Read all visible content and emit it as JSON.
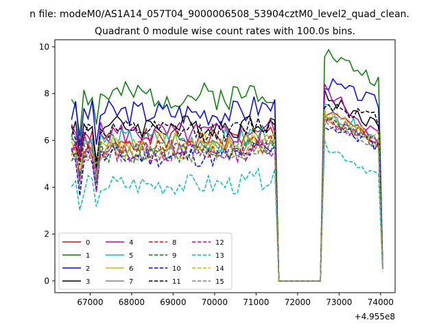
{
  "figure": {
    "suptitle": "n file: modeM0/AS1A14_057T04_9000006508_53904cztM0_level2_quad_clean.",
    "title": "Quadrant 0 module wise count rates with 100.0s bins."
  },
  "chart_data": {
    "type": "line",
    "title": "Quadrant 0 module wise count rates with 100.0s bins.",
    "xlabel": "",
    "ylabel": "",
    "x_offset_label": "+4.955e8",
    "xlim": [
      66150,
      74350
    ],
    "ylim": [
      -0.5,
      10.3
    ],
    "xticks": [
      67000,
      68000,
      69000,
      70000,
      71000,
      72000,
      73000,
      74000
    ],
    "yticks": [
      0,
      2,
      4,
      6,
      8,
      10
    ],
    "grid": false,
    "legend": {
      "placement": "lower-left",
      "columns": 4
    },
    "x_start": 66550,
    "x_step": 100,
    "gap": {
      "start": 71550,
      "end": 72550
    },
    "series": [
      {
        "name": "0",
        "color": "#ff0000",
        "dash": "solid",
        "pre_mean": 6.05,
        "pre_amp": 0.45,
        "post_start": 7.2,
        "post_end": 6.0,
        "post_amp": 0.3,
        "seed": 1
      },
      {
        "name": "1",
        "color": "#008000",
        "dash": "solid",
        "pre_mean": 7.9,
        "pre_amp": 0.6,
        "post_start": 9.8,
        "post_end": 8.5,
        "post_amp": 0.3,
        "seed": 2
      },
      {
        "name": "2",
        "color": "#0000ff",
        "dash": "solid",
        "pre_mean": 7.2,
        "pre_amp": 0.55,
        "post_start": 8.5,
        "post_end": 7.6,
        "post_amp": 0.3,
        "seed": 3
      },
      {
        "name": "3",
        "color": "#000000",
        "dash": "solid",
        "pre_mean": 6.6,
        "pre_amp": 0.5,
        "post_start": 7.9,
        "post_end": 6.6,
        "post_amp": 0.3,
        "seed": 4
      },
      {
        "name": "4",
        "color": "#bf00bf",
        "dash": "solid",
        "pre_mean": 6.3,
        "pre_amp": 0.5,
        "post_start": 8.2,
        "post_end": 6.2,
        "post_amp": 0.3,
        "seed": 5
      },
      {
        "name": "5",
        "color": "#00bfbf",
        "dash": "solid",
        "pre_mean": 6.0,
        "pre_amp": 0.5,
        "post_start": 7.4,
        "post_end": 6.0,
        "post_amp": 0.3,
        "seed": 6
      },
      {
        "name": "6",
        "color": "#bfbf00",
        "dash": "solid",
        "pre_mean": 5.9,
        "pre_amp": 0.45,
        "post_start": 7.1,
        "post_end": 6.0,
        "post_amp": 0.3,
        "seed": 7
      },
      {
        "name": "7",
        "color": "#808080",
        "dash": "solid",
        "pre_mean": 5.6,
        "pre_amp": 0.45,
        "post_start": 7.0,
        "post_end": 5.9,
        "post_amp": 0.3,
        "seed": 8
      },
      {
        "name": "8",
        "color": "#ff0000",
        "dash": "dashed",
        "pre_mean": 5.6,
        "pre_amp": 0.45,
        "post_start": 6.9,
        "post_end": 6.0,
        "post_amp": 0.3,
        "seed": 9
      },
      {
        "name": "9",
        "color": "#008000",
        "dash": "dashed",
        "pre_mean": 5.5,
        "pre_amp": 0.45,
        "post_start": 6.8,
        "post_end": 5.9,
        "post_amp": 0.3,
        "seed": 10
      },
      {
        "name": "10",
        "color": "#0000ff",
        "dash": "dashed",
        "pre_mean": 5.3,
        "pre_amp": 0.45,
        "post_start": 6.7,
        "post_end": 5.8,
        "post_amp": 0.3,
        "seed": 11
      },
      {
        "name": "11",
        "color": "#000000",
        "dash": "dashed",
        "pre_mean": 6.4,
        "pre_amp": 0.45,
        "post_start": 7.6,
        "post_end": 6.9,
        "post_amp": 0.3,
        "seed": 12
      },
      {
        "name": "12",
        "color": "#bf00bf",
        "dash": "dashed",
        "pre_mean": 5.5,
        "pre_amp": 0.45,
        "post_start": 6.9,
        "post_end": 5.9,
        "post_amp": 0.3,
        "seed": 13
      },
      {
        "name": "13",
        "color": "#00bfbf",
        "dash": "dashed",
        "pre_mean": 4.1,
        "pre_amp": 0.45,
        "post_start": 5.8,
        "post_end": 4.5,
        "post_amp": 0.2,
        "seed": 14
      },
      {
        "name": "14",
        "color": "#bfbf00",
        "dash": "dashed",
        "pre_mean": 5.6,
        "pre_amp": 0.45,
        "post_start": 7.1,
        "post_end": 6.1,
        "post_amp": 0.3,
        "seed": 15
      },
      {
        "name": "15",
        "color": "#808080",
        "dash": "dashed",
        "pre_mean": 5.5,
        "pre_amp": 0.45,
        "post_start": 6.7,
        "post_end": 5.8,
        "post_amp": 0.3,
        "seed": 16
      }
    ]
  }
}
